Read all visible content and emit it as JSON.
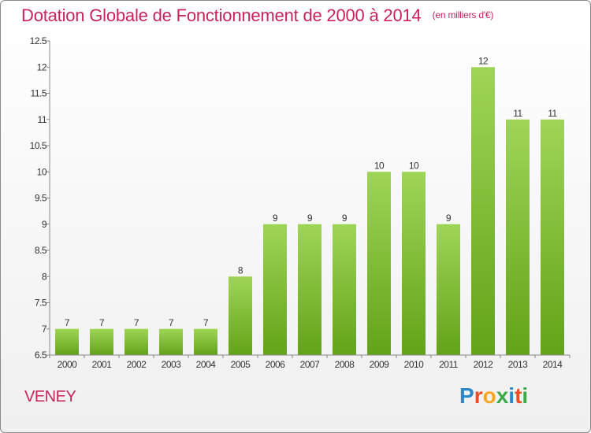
{
  "title": "Dotation Globale de Fonctionnement de 2000 à 2014",
  "subtitle": "(en milliers d'€)",
  "commune": "VENEY",
  "logo": {
    "text": "Proxiti",
    "letters": [
      "P",
      "r",
      "o",
      "x",
      "i",
      "t",
      "i"
    ],
    "colors": [
      "#2b88c9",
      "#e94e24",
      "#f5a623",
      "#3daa4a",
      "#2b88c9",
      "#e94e24",
      "#3daa4a"
    ]
  },
  "colors": {
    "title": "#c8235a",
    "bar_top": "#9fd556",
    "bar_bottom": "#62a318",
    "axis": "#888888"
  },
  "chart_data": {
    "type": "bar",
    "categories": [
      "2000",
      "2001",
      "2002",
      "2003",
      "2004",
      "2005",
      "2006",
      "2007",
      "2008",
      "2009",
      "2010",
      "2011",
      "2012",
      "2013",
      "2014"
    ],
    "values": [
      7,
      7,
      7,
      7,
      7,
      8,
      9,
      9,
      9,
      10,
      10,
      9,
      12,
      11,
      11
    ],
    "data_labels": [
      "7",
      "7",
      "7",
      "7",
      "7",
      "8",
      "9",
      "9",
      "9",
      "10",
      "10",
      "9",
      "12",
      "11",
      "11"
    ],
    "ylim": [
      6.5,
      12.5
    ],
    "yticks": [
      "6.5",
      "7",
      "7.5",
      "8",
      "8.5",
      "9",
      "9.5",
      "10",
      "10.5",
      "11",
      "11.5",
      "12",
      "12.5"
    ],
    "grid": false,
    "legend": "none"
  }
}
